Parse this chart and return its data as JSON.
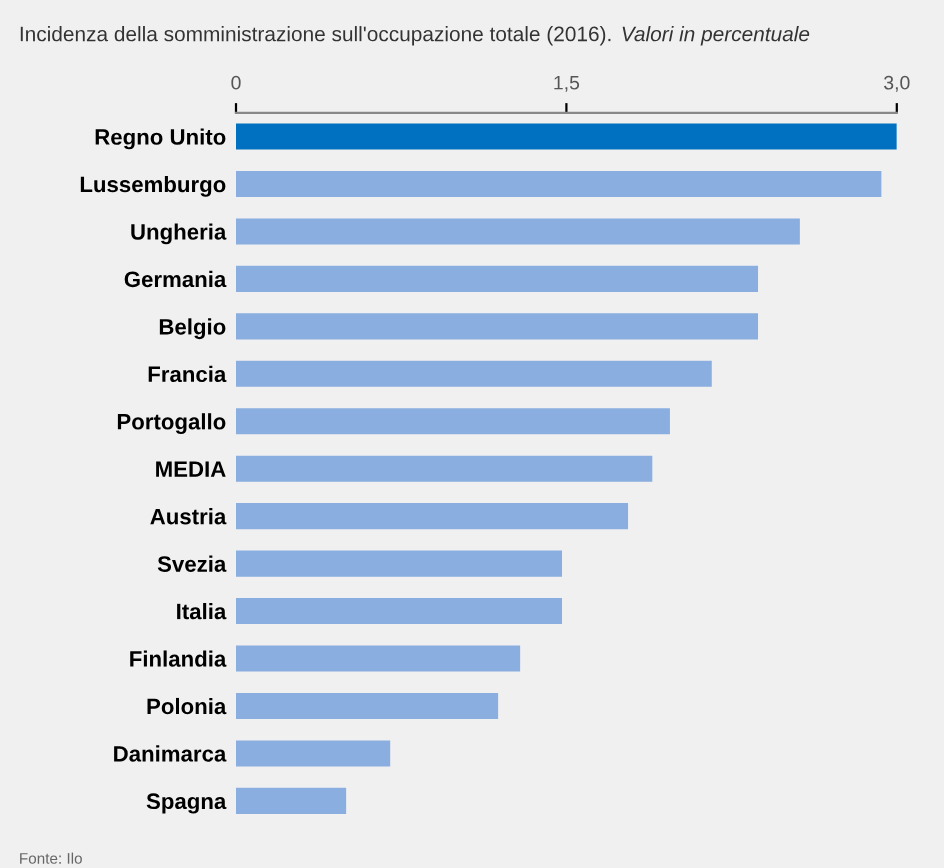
{
  "chart_data": {
    "type": "bar",
    "orientation": "horizontal",
    "title": "Incidenza della somministrazione sull'occupazione totale (2016).",
    "subtitle": "Valori in percentuale",
    "categories": [
      "Regno Unito",
      "Lussemburgo",
      "Ungheria",
      "Germania",
      "Belgio",
      "Francia",
      "Portogallo",
      "MEDIA",
      "Austria",
      "Svezia",
      "Italia",
      "Finlandia",
      "Polonia",
      "Danimarca",
      "Spagna"
    ],
    "values": [
      3.0,
      2.93,
      2.56,
      2.37,
      2.37,
      2.16,
      1.97,
      1.89,
      1.78,
      1.48,
      1.48,
      1.29,
      1.19,
      0.7,
      0.5
    ],
    "colors": [
      "#0070c0",
      "#8aaedf",
      "#8aaedf",
      "#8aaedf",
      "#8aaedf",
      "#8aaedf",
      "#8aaedf",
      "#8aaedf",
      "#8aaedf",
      "#8aaedf",
      "#8aaedf",
      "#8aaedf",
      "#8aaedf",
      "#8aaedf",
      "#8aaedf"
    ],
    "xlim": [
      0,
      3.0
    ],
    "xticks": [
      0,
      {
        "value": 1.5,
        "label": "1,5"
      },
      {
        "value": 3.0,
        "label": "3,0"
      }
    ],
    "annotations": [
      "Fonte: Ilo"
    ],
    "grid": false,
    "legend": false
  }
}
